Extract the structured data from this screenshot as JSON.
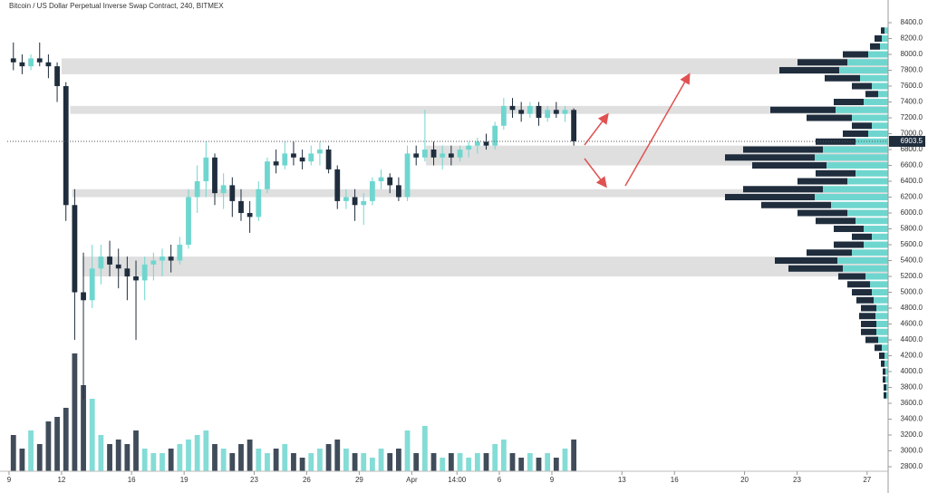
{
  "chart_data": {
    "type": "candlestick",
    "title": "Bitcoin / US Dollar Perpetual Inverse Swap Contract, 240, BITMEX",
    "xlim": [
      -0.1,
      50.2
    ],
    "xticks": [
      {
        "value": 0,
        "label": "9"
      },
      {
        "value": 3,
        "label": "12"
      },
      {
        "value": 7,
        "label": "16"
      },
      {
        "value": 10,
        "label": "19"
      },
      {
        "value": 14,
        "label": "23"
      },
      {
        "value": 17,
        "label": "26"
      },
      {
        "value": 20,
        "label": "29"
      },
      {
        "value": 23,
        "label": "Apr"
      },
      {
        "value": 25.58,
        "label": "14:00"
      },
      {
        "value": 28,
        "label": "6"
      },
      {
        "value": 31,
        "label": "9"
      },
      {
        "value": 35,
        "label": "13"
      },
      {
        "value": 38,
        "label": "16"
      },
      {
        "value": 42,
        "label": "20"
      },
      {
        "value": 45,
        "label": "23"
      },
      {
        "value": 49,
        "label": "27"
      }
    ],
    "ylim": [
      2743,
      8686
    ],
    "yticks": [
      {
        "value": 2800,
        "label": "2800.0"
      },
      {
        "value": 3000,
        "label": "3000.0"
      },
      {
        "value": 3200,
        "label": "3200.0"
      },
      {
        "value": 3400,
        "label": "3400.0"
      },
      {
        "value": 3600,
        "label": "3600.0"
      },
      {
        "value": 3800,
        "label": "3800.0"
      },
      {
        "value": 4000,
        "label": "4000.0"
      },
      {
        "value": 4200,
        "label": "4200.0"
      },
      {
        "value": 4400,
        "label": "4400.0"
      },
      {
        "value": 4600,
        "label": "4600.0"
      },
      {
        "value": 4800,
        "label": "4800.0"
      },
      {
        "value": 5000,
        "label": "5000.0"
      },
      {
        "value": 5200,
        "label": "5200.0"
      },
      {
        "value": 5400,
        "label": "5400.0"
      },
      {
        "value": 5600,
        "label": "5600.0"
      },
      {
        "value": 5800,
        "label": "5800.0"
      },
      {
        "value": 6000,
        "label": "6000.0"
      },
      {
        "value": 6200,
        "label": "6200.0"
      },
      {
        "value": 6400,
        "label": "6400.0"
      },
      {
        "value": 6600,
        "label": "6600.0"
      },
      {
        "value": 6800,
        "label": "6800.0"
      },
      {
        "value": 7000,
        "label": "7000.0"
      },
      {
        "value": 7200,
        "label": "7200.0"
      },
      {
        "value": 7400,
        "label": "7400.0"
      },
      {
        "value": 7600,
        "label": "7600.0"
      },
      {
        "value": 7800,
        "label": "7800.0"
      },
      {
        "value": 8000,
        "label": "8000.0"
      },
      {
        "value": 8200,
        "label": "8200.0"
      },
      {
        "value": 8400,
        "label": "8400.0"
      }
    ],
    "up_color": "#6fd6cf",
    "down_color": "#1f2d3d",
    "x": [
      0.25,
      0.75,
      1.25,
      1.75,
      2.25,
      2.75,
      3.25,
      3.75,
      4.25,
      4.75,
      5.25,
      5.75,
      6.25,
      6.75,
      7.25,
      7.75,
      8.25,
      8.75,
      9.25,
      9.75,
      10.25,
      10.75,
      11.25,
      11.75,
      12.25,
      12.75,
      13.25,
      13.75,
      14.25,
      14.75,
      15.25,
      15.75,
      16.25,
      16.75,
      17.25,
      17.75,
      18.25,
      18.75,
      19.25,
      19.75,
      20.25,
      20.75,
      21.25,
      21.75,
      22.25,
      22.75,
      23.25,
      23.75,
      24.25,
      24.75,
      25.25,
      25.75,
      26.25,
      26.75,
      27.25,
      27.75,
      28.25,
      28.75,
      29.25,
      29.75,
      30.25,
      30.75,
      31.25,
      31.75,
      32.25
    ],
    "open": [
      7950,
      7900,
      7850,
      7950,
      7900,
      7850,
      7600,
      6100,
      5000,
      4900,
      5300,
      5450,
      5350,
      5300,
      5200,
      5150,
      5350,
      5400,
      5450,
      5400,
      5600,
      6200,
      6400,
      6700,
      6250,
      6350,
      6150,
      6000,
      5950,
      6300,
      6650,
      6600,
      6750,
      6700,
      6650,
      6750,
      6800,
      6550,
      6150,
      6200,
      6100,
      6150,
      6400,
      6450,
      6350,
      6200,
      6750,
      6700,
      6800,
      6700,
      6750,
      6700,
      6800,
      6850,
      6900,
      6850,
      7100,
      7350,
      7300,
      7250,
      7350,
      7200,
      7300,
      7250,
      7300
    ],
    "high": [
      8150,
      8000,
      8000,
      8150,
      8000,
      7900,
      7650,
      6300,
      5500,
      5600,
      5600,
      5650,
      5550,
      5450,
      5400,
      5450,
      5500,
      5550,
      5600,
      5700,
      6300,
      6600,
      6900,
      6750,
      6500,
      6450,
      6300,
      6150,
      6400,
      6700,
      6800,
      6900,
      6900,
      6800,
      6850,
      6900,
      6850,
      6600,
      6300,
      6300,
      6250,
      6450,
      6550,
      6500,
      6450,
      6850,
      6850,
      7300,
      6900,
      6850,
      6850,
      6850,
      6900,
      6950,
      7000,
      7150,
      7450,
      7450,
      7400,
      7400,
      7400,
      7350,
      7400,
      7350,
      7320
    ],
    "low": [
      7800,
      7750,
      7800,
      7850,
      7700,
      7400,
      5900,
      4400,
      3650,
      4800,
      5100,
      5200,
      5050,
      4900,
      4400,
      4900,
      5150,
      5200,
      5250,
      5350,
      5550,
      6000,
      6200,
      6100,
      6050,
      5950,
      5900,
      5750,
      5900,
      6250,
      6500,
      6550,
      6600,
      6550,
      6600,
      6600,
      6500,
      6050,
      6050,
      5900,
      5850,
      6100,
      6300,
      6250,
      6150,
      6150,
      6600,
      6650,
      6600,
      6550,
      6600,
      6650,
      6700,
      6750,
      6800,
      6800,
      7050,
      7200,
      7150,
      7200,
      7100,
      7150,
      7200,
      7150,
      6850
    ],
    "close": [
      7900,
      7850,
      7950,
      7900,
      7850,
      7600,
      6100,
      5000,
      4900,
      5300,
      5450,
      5350,
      5300,
      5200,
      5150,
      5350,
      5400,
      5450,
      5400,
      5600,
      6200,
      6400,
      6700,
      6250,
      6350,
      6150,
      6000,
      5950,
      6300,
      6650,
      6600,
      6750,
      6700,
      6650,
      6750,
      6800,
      6550,
      6150,
      6200,
      6100,
      6150,
      6400,
      6450,
      6350,
      6200,
      6750,
      6700,
      6800,
      6700,
      6750,
      6700,
      6800,
      6850,
      6900,
      6850,
      7100,
      7350,
      7300,
      7250,
      7350,
      7200,
      7300,
      7250,
      7300,
      6903.5
    ],
    "volume": [
      40,
      25,
      45,
      30,
      55,
      60,
      70,
      130,
      95,
      80,
      40,
      30,
      35,
      30,
      45,
      25,
      20,
      20,
      25,
      30,
      35,
      40,
      45,
      30,
      25,
      20,
      30,
      35,
      25,
      20,
      25,
      30,
      20,
      15,
      20,
      25,
      30,
      35,
      25,
      20,
      20,
      15,
      25,
      20,
      25,
      45,
      20,
      50,
      20,
      15,
      20,
      20,
      15,
      20,
      20,
      30,
      35,
      20,
      15,
      20,
      15,
      20,
      15,
      25,
      35
    ],
    "zones": [
      {
        "start": 3,
        "low": 7750,
        "high": 7950
      },
      {
        "start": 3.5,
        "low": 7250,
        "high": 7350
      },
      {
        "start": 23.8,
        "low": 6600,
        "high": 6850
      },
      {
        "start": 3.6,
        "low": 6200,
        "high": 6300
      },
      {
        "start": 4.2,
        "low": 5200,
        "high": 5450
      }
    ],
    "profile": {
      "step": 100,
      "prices": [
        3700,
        3800,
        3900,
        4000,
        4100,
        4200,
        4300,
        4400,
        4500,
        4600,
        4700,
        4800,
        4900,
        5000,
        5100,
        5200,
        5300,
        5400,
        5500,
        5600,
        5700,
        5800,
        5900,
        6000,
        6100,
        6200,
        6300,
        6400,
        6500,
        6600,
        6700,
        6800,
        6900,
        7000,
        7100,
        7200,
        7300,
        7400,
        7500,
        7600,
        7700,
        7800,
        7900,
        8000,
        8100,
        8200,
        8300
      ],
      "up": [
        2,
        2,
        3,
        3,
        4,
        4,
        7,
        11,
        13,
        13,
        14,
        13,
        16,
        18,
        20,
        25,
        50,
        56,
        40,
        27,
        18,
        27,
        36,
        45,
        63,
        81,
        72,
        45,
        36,
        68,
        81,
        72,
        36,
        22,
        18,
        40,
        58,
        27,
        11,
        18,
        31,
        54,
        45,
        22,
        9,
        7,
        4
      ],
      "down": [
        3,
        3,
        3,
        3,
        4,
        6,
        8,
        14,
        17,
        17,
        18,
        17,
        19,
        22,
        25,
        30,
        60,
        69,
        50,
        33,
        22,
        33,
        44,
        55,
        77,
        99,
        88,
        55,
        44,
        82,
        99,
        88,
        44,
        28,
        22,
        50,
        72,
        33,
        14,
        22,
        39,
        66,
        55,
        28,
        11,
        8,
        4
      ]
    }
  }
}
